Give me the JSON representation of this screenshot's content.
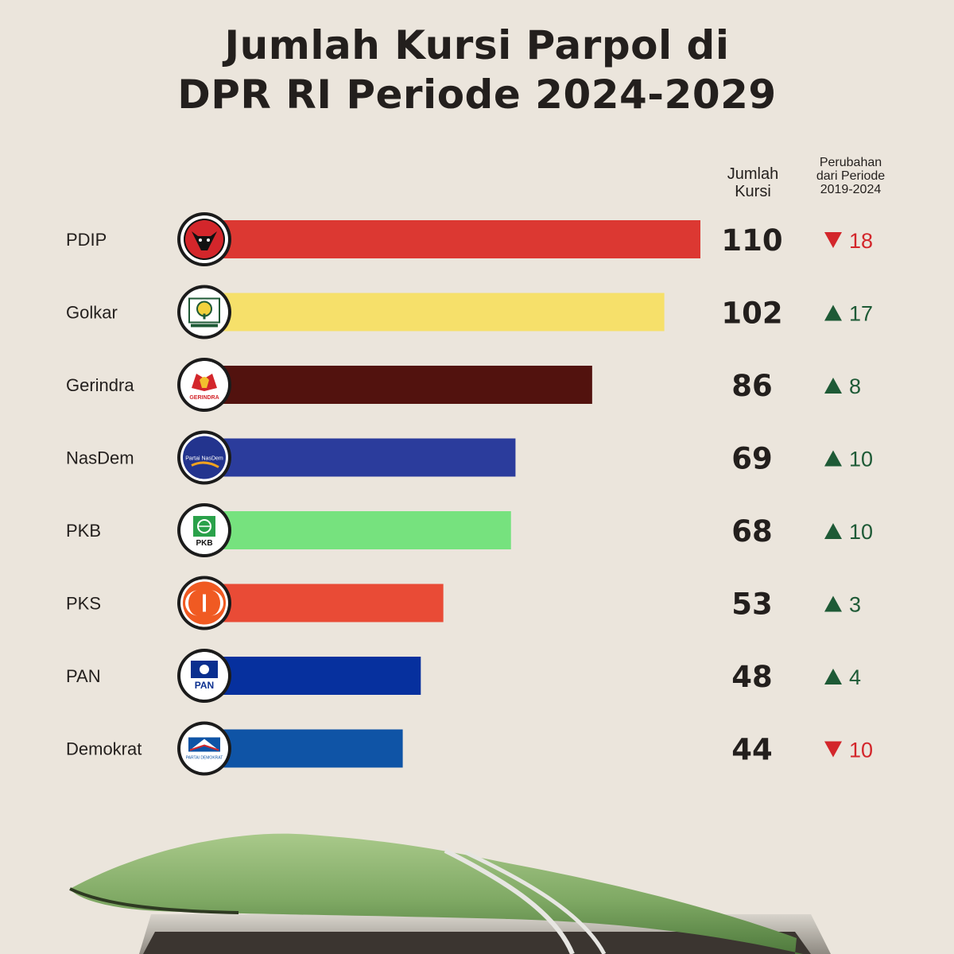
{
  "title": {
    "line1": "Jumlah Kursi Parpol di",
    "line2": "DPR RI Periode 2024-2029"
  },
  "headers": {
    "seats_line1": "Jumlah",
    "seats_line2": "Kursi",
    "change_line1": "Perubahan",
    "change_line2": "dari Periode",
    "change_line3": "2019-2024"
  },
  "chart_data": {
    "type": "bar",
    "orientation": "horizontal",
    "title": "Jumlah Kursi Parpol di DPR RI Periode 2024-2029",
    "categories": [
      "PDIP",
      "Golkar",
      "Gerindra",
      "NasDem",
      "PKB",
      "PKS",
      "PAN",
      "Demokrat"
    ],
    "values": [
      110,
      102,
      86,
      69,
      68,
      53,
      48,
      44
    ],
    "change": [
      -18,
      17,
      8,
      10,
      10,
      3,
      4,
      -10
    ],
    "change_labels": [
      "18",
      "17",
      "8",
      "10",
      "10",
      "3",
      "4",
      "10"
    ],
    "colors": [
      "#dc3832",
      "#f6e06a",
      "#52120e",
      "#2b3c9c",
      "#76e27e",
      "#e94b36",
      "#06309e",
      "#0f54a6"
    ],
    "logo_text": [
      "",
      "",
      "GERINDRA",
      "Partai NasDem",
      "PKB",
      "",
      "PAN",
      "PARTAI DEMOKRAT"
    ],
    "up_color": "#1e5a36",
    "down_color": "#d3262b",
    "xlim": [
      0,
      110
    ]
  }
}
